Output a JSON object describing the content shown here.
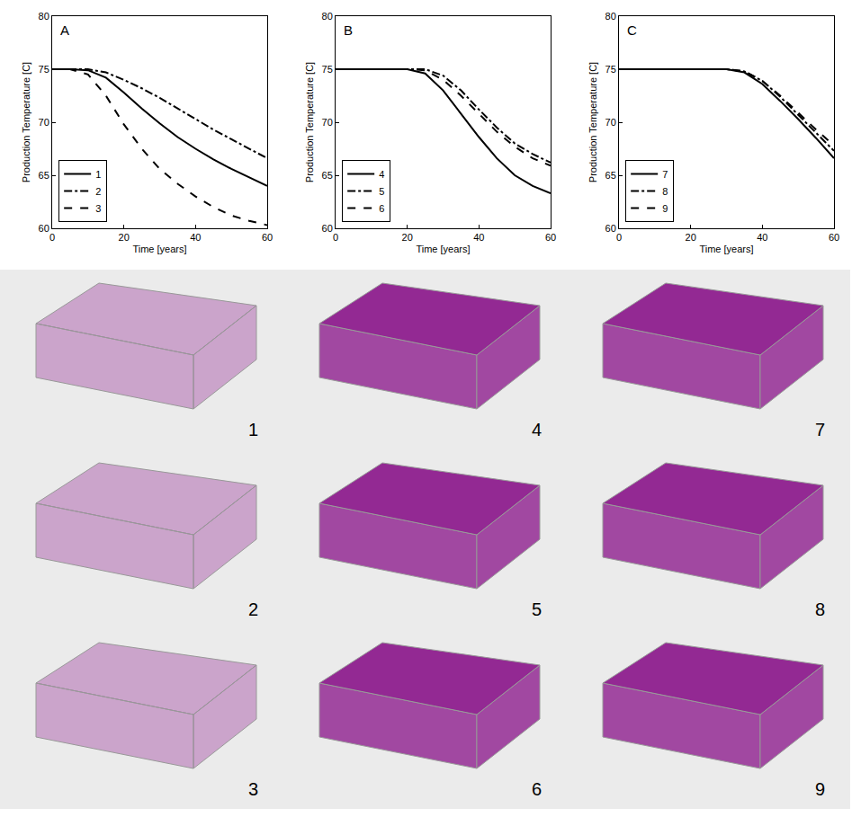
{
  "chart_data": [
    {
      "type": "line",
      "title": "A",
      "x_label": "Time [years]",
      "y_label": "Production Temperature [C]",
      "x": [
        0,
        5,
        10,
        15,
        20,
        25,
        30,
        35,
        40,
        45,
        50,
        55,
        60
      ],
      "series": [
        {
          "name": "1",
          "color": "#000000",
          "line_style": "solid",
          "values": [
            75,
            75,
            74.9,
            74.2,
            72.8,
            71.3,
            69.9,
            68.6,
            67.5,
            66.5,
            65.6,
            64.8,
            64.0
          ]
        },
        {
          "name": "2",
          "color": "#000000",
          "line_style": "dashdot",
          "values": [
            75,
            75,
            75,
            74.7,
            74.0,
            73.2,
            72.3,
            71.3,
            70.3,
            69.3,
            68.4,
            67.5,
            66.6
          ]
        },
        {
          "name": "3",
          "color": "#000000",
          "line_style": "dash",
          "values": [
            75,
            75,
            74.5,
            72.5,
            69.8,
            67.5,
            65.6,
            64.2,
            63.0,
            62.0,
            61.2,
            60.7,
            60.3
          ]
        }
      ],
      "xlim": [
        0,
        60
      ],
      "xticks": [
        0,
        20,
        40,
        60
      ],
      "ylim": [
        60,
        80
      ],
      "yticks": [
        60,
        65,
        70,
        75,
        80
      ],
      "legend": "lower left",
      "grid": false
    },
    {
      "type": "line",
      "title": "B",
      "x_label": "Time [years]",
      "y_label": "Production Temperature [C]",
      "x": [
        0,
        5,
        10,
        15,
        20,
        25,
        30,
        35,
        40,
        45,
        50,
        55,
        60
      ],
      "series": [
        {
          "name": "4",
          "color": "#000000",
          "line_style": "solid",
          "values": [
            75,
            75,
            75,
            75,
            75,
            74.6,
            73.0,
            70.8,
            68.6,
            66.6,
            65.0,
            64.0,
            63.3
          ]
        },
        {
          "name": "5",
          "color": "#000000",
          "line_style": "dashdot",
          "values": [
            75,
            75,
            75,
            75,
            75,
            75,
            74.4,
            73.0,
            71.2,
            69.5,
            68.0,
            67.0,
            66.2
          ]
        },
        {
          "name": "6",
          "color": "#000000",
          "line_style": "dash",
          "values": [
            75,
            75,
            75,
            75,
            75,
            74.9,
            74.0,
            72.5,
            70.8,
            69.1,
            67.7,
            66.6,
            65.9
          ]
        }
      ],
      "xlim": [
        0,
        60
      ],
      "xticks": [
        0,
        20,
        40,
        60
      ],
      "ylim": [
        60,
        80
      ],
      "yticks": [
        60,
        65,
        70,
        75,
        80
      ],
      "legend": "lower left",
      "grid": false
    },
    {
      "type": "line",
      "title": "C",
      "x_label": "Time [years]",
      "y_label": "Production Temperature [C]",
      "x": [
        0,
        5,
        10,
        15,
        20,
        25,
        30,
        35,
        40,
        45,
        50,
        55,
        60
      ],
      "series": [
        {
          "name": "7",
          "color": "#000000",
          "line_style": "solid",
          "values": [
            75,
            75,
            75,
            75,
            75,
            75,
            75,
            74.7,
            73.6,
            72.0,
            70.3,
            68.5,
            66.6
          ]
        },
        {
          "name": "8",
          "color": "#000000",
          "line_style": "dashdot",
          "values": [
            75,
            75,
            75,
            75,
            75,
            75,
            75,
            74.8,
            73.9,
            72.4,
            70.7,
            69.0,
            67.3
          ]
        },
        {
          "name": "9",
          "color": "#000000",
          "line_style": "dash",
          "values": [
            75,
            75,
            75,
            75,
            75,
            75,
            75,
            74.8,
            73.9,
            72.5,
            70.9,
            69.3,
            67.8
          ]
        }
      ],
      "xlim": [
        0,
        60
      ],
      "xticks": [
        0,
        20,
        40,
        60
      ],
      "ylim": [
        60,
        80
      ],
      "yticks": [
        60,
        65,
        70,
        75,
        80
      ],
      "legend": "lower left",
      "grid": false
    }
  ],
  "renderings": {
    "labels": [
      "1",
      "4",
      "7",
      "2",
      "5",
      "8",
      "3",
      "6",
      "9"
    ]
  }
}
